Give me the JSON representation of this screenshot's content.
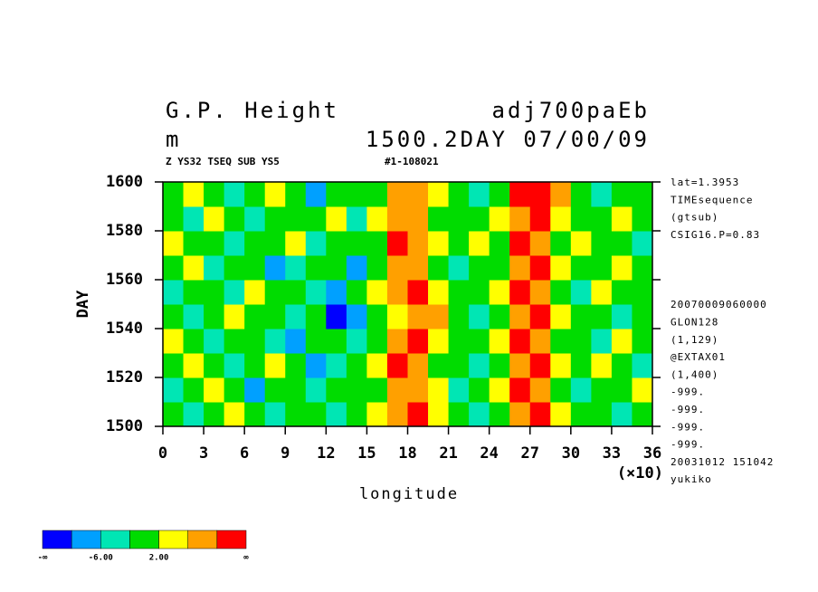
{
  "chart_data": {
    "type": "heatmap",
    "title": "G.P. Height",
    "title_right": "adj700paEb",
    "unit": "m",
    "subtitle_right": "1500.2DAY 07/00/09",
    "note_left": "Z YS32 TSEQ SUB YS5",
    "note_right": "#1-108021",
    "ylabel": "DAY",
    "xlabel": "longitude",
    "x_multiplier": "(×10)",
    "xlim": [
      0,
      36
    ],
    "xticks": [
      0,
      3,
      6,
      9,
      12,
      15,
      18,
      21,
      24,
      27,
      30,
      33,
      36
    ],
    "ylim": [
      1500,
      1600
    ],
    "yticks": [
      1500,
      1520,
      1540,
      1560,
      1580,
      1600
    ],
    "xbins": [
      0,
      1.5,
      3,
      4.5,
      6,
      7.5,
      9,
      10.5,
      12,
      13.5,
      15,
      16.5,
      18,
      19.5,
      21,
      22.5,
      24,
      25.5,
      27,
      28.5,
      30,
      31.5,
      33,
      34.5,
      36
    ],
    "ybins": [
      1500,
      1510,
      1520,
      1530,
      1540,
      1550,
      1560,
      1570,
      1580,
      1590,
      1600
    ],
    "values": [
      [
        0,
        -3,
        0,
        3,
        0,
        -3,
        0,
        0,
        -3,
        0,
        3,
        6,
        12,
        3,
        0,
        -3,
        0,
        8,
        12,
        3,
        0,
        0,
        -3,
        0
      ],
      [
        -3,
        0,
        3,
        0,
        -7,
        0,
        0,
        -3,
        0,
        0,
        0,
        8,
        6,
        3,
        -3,
        0,
        3,
        12,
        8,
        0,
        -3,
        0,
        0,
        3
      ],
      [
        0,
        3,
        0,
        -3,
        0,
        3,
        0,
        -7,
        -3,
        0,
        3,
        12,
        8,
        0,
        0,
        -3,
        0,
        8,
        12,
        3,
        0,
        3,
        0,
        -3
      ],
      [
        3,
        0,
        -3,
        0,
        0,
        -3,
        -7,
        0,
        0,
        -3,
        0,
        6,
        12,
        3,
        0,
        0,
        3,
        12,
        6,
        0,
        0,
        -3,
        3,
        0
      ],
      [
        0,
        -3,
        0,
        3,
        0,
        0,
        -3,
        0,
        -11,
        -7,
        0,
        3,
        8,
        6,
        0,
        -3,
        0,
        6,
        12,
        3,
        0,
        0,
        -3,
        0
      ],
      [
        -3,
        0,
        0,
        -3,
        3,
        0,
        0,
        -3,
        -7,
        0,
        3,
        6,
        12,
        3,
        0,
        0,
        3,
        12,
        8,
        0,
        -3,
        3,
        0,
        0
      ],
      [
        0,
        3,
        -3,
        0,
        0,
        -7,
        -3,
        0,
        0,
        -7,
        0,
        8,
        6,
        0,
        -3,
        0,
        0,
        8,
        12,
        3,
        0,
        0,
        3,
        0
      ],
      [
        3,
        0,
        0,
        -3,
        0,
        0,
        3,
        -3,
        0,
        0,
        0,
        12,
        8,
        3,
        0,
        3,
        0,
        12,
        6,
        0,
        3,
        0,
        0,
        -3
      ],
      [
        0,
        -3,
        3,
        0,
        -3,
        0,
        0,
        0,
        3,
        -3,
        3,
        6,
        8,
        0,
        0,
        0,
        3,
        6,
        12,
        3,
        0,
        0,
        3,
        0
      ],
      [
        0,
        3,
        0,
        -3,
        0,
        3,
        0,
        -7,
        0,
        0,
        0,
        8,
        6,
        3,
        0,
        -3,
        0,
        12,
        12,
        6,
        0,
        -3,
        0,
        0
      ]
    ],
    "levels": [
      -10,
      -6,
      -2,
      2,
      6,
      10
    ],
    "colors": [
      "#0000ff",
      "#00a0ff",
      "#00e6b4",
      "#00dc00",
      "#ffff00",
      "#ffa000",
      "#ff0000"
    ],
    "colorbar_ends": [
      "-∞",
      "∞"
    ],
    "colorbar_labels": [
      {
        "value": -6,
        "label": "-6.00"
      },
      {
        "value": 2,
        "label": "2.00"
      }
    ],
    "side_info": [
      "lat=1.3953",
      "TIMEsequence",
      "(gtsub)",
      "CSIG16.P=0.83",
      "20070009060000",
      "GLON128",
      "(1,129)",
      "@EXTAX01",
      "(1,400)",
      "-999.",
      "-999.",
      "-999.",
      "-999.",
      "20031012 151042",
      "yukiko"
    ]
  }
}
